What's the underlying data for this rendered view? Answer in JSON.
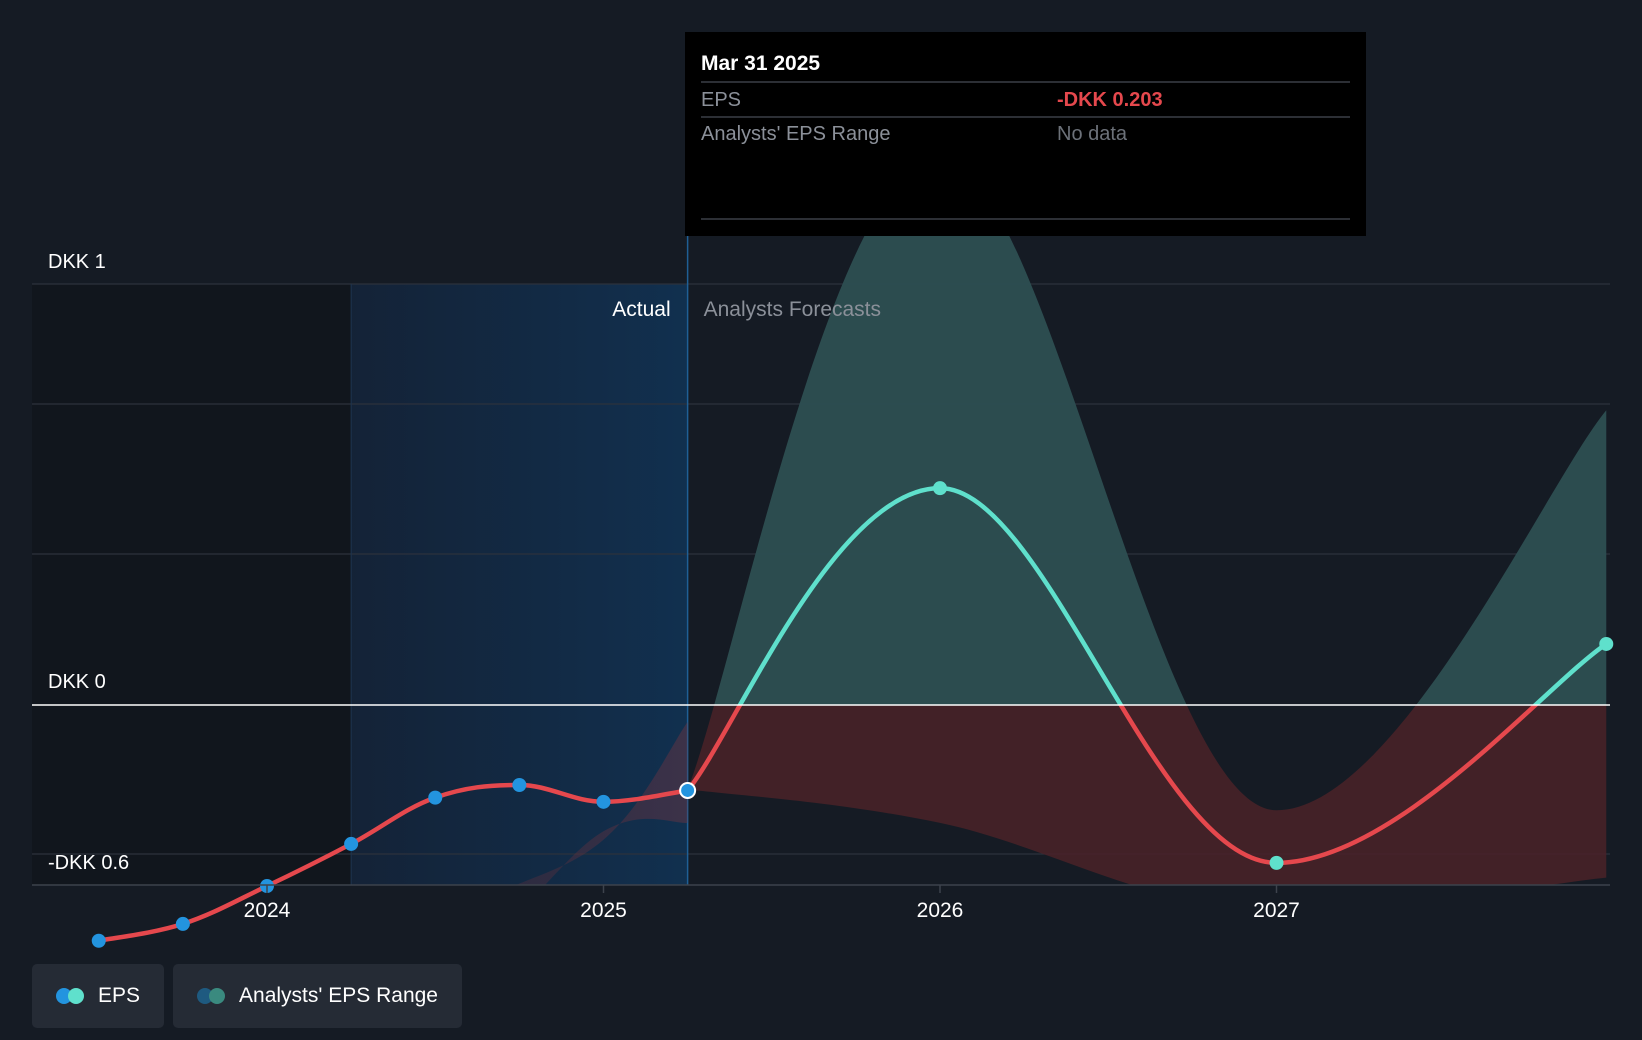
{
  "tooltip": {
    "date": "Mar 31 2025",
    "rows": [
      {
        "label": "EPS",
        "value": "-DKK 0.203",
        "color": "#e5484d"
      },
      {
        "label": "Analysts' EPS Range",
        "value": "No data",
        "color": "#777c84"
      }
    ]
  },
  "sections": {
    "actual": "Actual",
    "forecast": "Analysts Forecasts"
  },
  "legend": [
    {
      "label": "EPS",
      "colors": [
        "#2394df",
        "#5fe0cc"
      ]
    },
    {
      "label": "Analysts' EPS Range",
      "colors": [
        "#1e5a80",
        "#3a8a7f"
      ]
    }
  ],
  "colors": {
    "background": "#151b24",
    "eps_actual": "#2394df",
    "eps_negative": "#e5484d",
    "eps_positive": "#5fe0cc",
    "range_positive": "#2d4f52",
    "range_negative": "#4a2228",
    "highlight": "#112a44"
  },
  "chart_data": {
    "type": "line",
    "y_tick_labels": [
      {
        "value": 1,
        "label": "DKK 1"
      },
      {
        "value": 0,
        "label": "DKK 0"
      },
      {
        "value": -0.6,
        "label": "-DKK 0.6"
      }
    ],
    "x_tick_labels": [
      {
        "value": 2024.0,
        "label": "2024"
      },
      {
        "value": 2025.0,
        "label": "2025"
      },
      {
        "value": 2026.0,
        "label": "2026"
      },
      {
        "value": 2027.0,
        "label": "2027"
      }
    ],
    "xlim": [
      2023.3,
      2027.98
    ],
    "ylim": [
      -0.6,
      1
    ],
    "grid": true,
    "legend_position": "bottom-left",
    "divider_x": 2025.25,
    "highlight_start": 2024.25,
    "series": [
      {
        "name": "EPS",
        "kind": "actual",
        "points": [
          {
            "x": 2023.5,
            "y": -0.56
          },
          {
            "x": 2023.75,
            "y": -0.52
          },
          {
            "x": 2024.0,
            "y": -0.43
          },
          {
            "x": 2024.25,
            "y": -0.33
          },
          {
            "x": 2024.5,
            "y": -0.22
          },
          {
            "x": 2024.75,
            "y": -0.19
          },
          {
            "x": 2025.0,
            "y": -0.23
          },
          {
            "x": 2025.25,
            "y": -0.203
          }
        ]
      },
      {
        "name": "EPS",
        "kind": "forecast",
        "points": [
          {
            "x": 2025.25,
            "y": -0.203
          },
          {
            "x": 2026.0,
            "y": 0.515
          },
          {
            "x": 2027.0,
            "y": -0.375
          },
          {
            "x": 2027.98,
            "y": 0.145
          }
        ]
      }
    ],
    "range": {
      "name": "Analysts' EPS Range",
      "points": [
        {
          "x": 2025.25,
          "low": -0.2,
          "high": -0.2
        },
        {
          "x": 2026.0,
          "low": -0.28,
          "high": 1.3
        },
        {
          "x": 2027.0,
          "low": -0.49,
          "high": -0.25
        },
        {
          "x": 2027.98,
          "low": -0.41,
          "high": 0.7
        }
      ]
    }
  }
}
